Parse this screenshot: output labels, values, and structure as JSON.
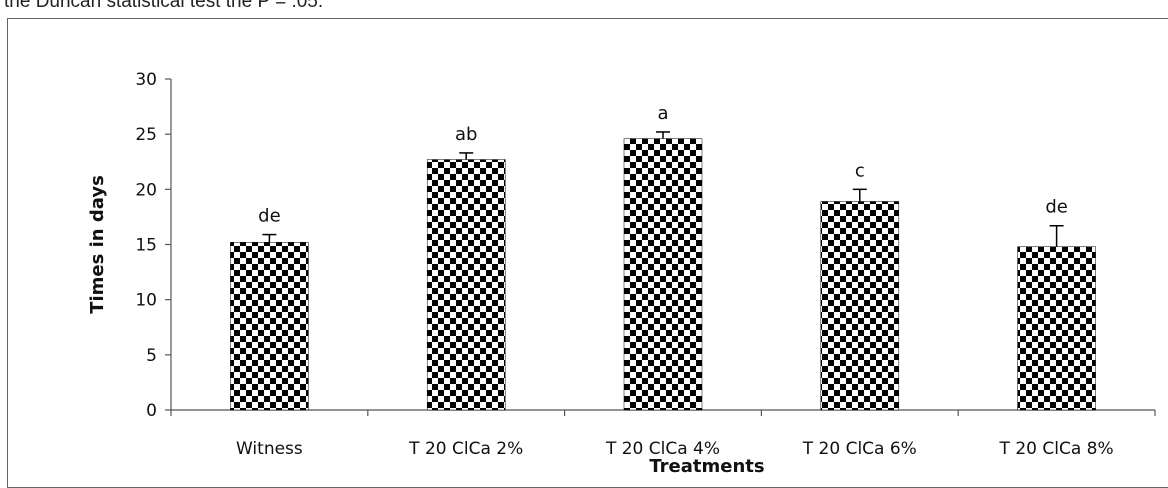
{
  "caption_fragment": "the Duncan statistical test the P = .05.",
  "chart_data": {
    "type": "bar",
    "categories": [
      "Witness",
      "T 20 ClCa 2%",
      "T 20 ClCa 4%",
      "T 20 ClCa 6%",
      "T 20 ClCa 8%"
    ],
    "values": [
      15.2,
      22.7,
      24.6,
      18.9,
      14.8
    ],
    "error": [
      0.7,
      0.6,
      0.6,
      1.1,
      1.9
    ],
    "significance_labels": [
      "de",
      "ab",
      "a",
      "c",
      "de"
    ],
    "xlabel": "Treatments",
    "ylabel": "Times in days",
    "ylim": [
      0,
      30
    ],
    "yticks": [
      0,
      5,
      10,
      15,
      20,
      25,
      30
    ],
    "bar_pattern": "checkerboard",
    "bar_colors": [
      "#000000",
      "#ffffff"
    ],
    "grid": false,
    "legend": "none"
  }
}
